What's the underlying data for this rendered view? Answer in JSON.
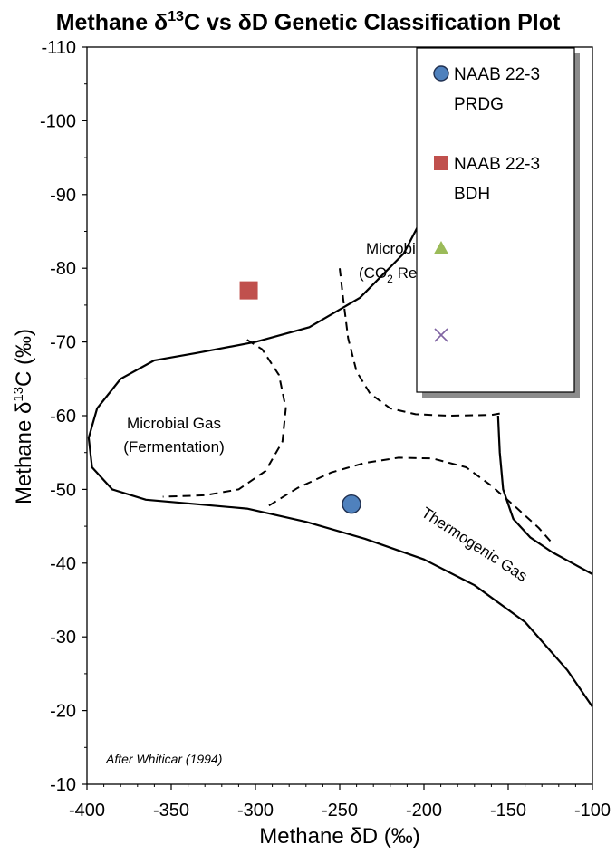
{
  "chart_data": {
    "type": "scatter",
    "title": "Methane δ13C vs δD Genetic Classification Plot",
    "title_parts": {
      "a": "Methane δ",
      "sup": "13",
      "b": "C vs δD Genetic Classification Plot"
    },
    "xlabel": "Methane δD (‰)",
    "ylabel": "Methane δ13C (‰)",
    "ylabel_parts": {
      "a": "Methane  δ",
      "sup": "13",
      "b": "C (‰)"
    },
    "xlim": [
      -400,
      -100
    ],
    "ylim": [
      -110,
      -10
    ],
    "y_axis_reversed": true,
    "x_ticks": [
      -400,
      -350,
      -300,
      -250,
      -200,
      -150,
      -100
    ],
    "x_tick_labels": [
      "-400",
      "-350",
      "-300",
      "-250",
      "-200",
      "-150",
      "-100"
    ],
    "y_ticks": [
      -110,
      -100,
      -90,
      -80,
      -70,
      -60,
      -50,
      -40,
      -30,
      -20,
      -10
    ],
    "y_tick_labels": [
      "-110",
      "-100",
      "-90",
      "-80",
      "-70",
      "-60",
      "-50",
      "-40",
      "-30",
      "-20",
      "-10"
    ],
    "grid": false,
    "legend_position": "top-right",
    "series": [
      {
        "name": "NAAB 22-3 PRDG",
        "legend_lines": [
          "NAAB 22-3",
          "PRDG"
        ],
        "marker": "circle",
        "color": "#4f81bd",
        "points": [
          {
            "x": -243,
            "y": -48
          }
        ]
      },
      {
        "name": "NAAB 22-3 BDH",
        "legend_lines": [
          "NAAB 22-3",
          "BDH"
        ],
        "marker": "square",
        "color": "#c0504d",
        "points": [
          {
            "x": -304,
            "y": -77
          }
        ]
      },
      {
        "name": "",
        "legend_lines": [],
        "marker": "triangle",
        "color": "#9bbb59",
        "points": []
      },
      {
        "name": "",
        "legend_lines": [],
        "marker": "x",
        "color": "#8064a2",
        "points": []
      }
    ],
    "annotations": {
      "fermentation": [
        "Microbial Gas",
        "(Fermentation)"
      ],
      "co2_reduction_line1": "Microbial Gas",
      "co2_reduction_line2": {
        "a": "(CO",
        "sub": "2",
        "b": " Reduction)"
      },
      "thermogenic": "Thermogenic Gas",
      "credit": "After Whiticar (1994)"
    },
    "boundaries": [
      {
        "style": "solid",
        "points": [
          [
            -183,
            -110
          ],
          [
            -184,
            -103
          ],
          [
            -188,
            -96
          ],
          [
            -196,
            -89
          ],
          [
            -212,
            -82
          ],
          [
            -238,
            -76
          ],
          [
            -268,
            -72
          ],
          [
            -300,
            -70
          ],
          [
            -335,
            -68.5
          ],
          [
            -360,
            -67.5
          ],
          [
            -380,
            -65
          ],
          [
            -394,
            -61
          ],
          [
            -399,
            -57
          ],
          [
            -397,
            -53
          ],
          [
            -385,
            -50
          ],
          [
            -365,
            -48.6
          ],
          [
            -335,
            -48
          ],
          [
            -305,
            -47.4
          ],
          [
            -270,
            -45.6
          ],
          [
            -235,
            -43.3
          ],
          [
            -200,
            -40.5
          ],
          [
            -170,
            -37
          ],
          [
            -140,
            -32
          ],
          [
            -115,
            -25.5
          ],
          [
            -100,
            -20.5
          ]
        ]
      },
      {
        "style": "solid",
        "points": [
          [
            -156,
            -60
          ],
          [
            -155,
            -55
          ],
          [
            -153,
            -50
          ],
          [
            -147,
            -46
          ],
          [
            -137,
            -43.5
          ],
          [
            -124,
            -41.5
          ],
          [
            -112,
            -40
          ],
          [
            -100,
            -38.5
          ]
        ]
      },
      {
        "style": "dashed",
        "points": [
          [
            -305,
            -70.3
          ],
          [
            -296,
            -69
          ],
          [
            -286,
            -65.5
          ],
          [
            -282,
            -61
          ],
          [
            -284,
            -56.5
          ],
          [
            -294,
            -52.5
          ],
          [
            -310,
            -50
          ],
          [
            -330,
            -49.2
          ],
          [
            -355,
            -49
          ]
        ]
      },
      {
        "style": "dashed",
        "points": [
          [
            -250,
            -80
          ],
          [
            -248,
            -76
          ],
          [
            -245,
            -70.5
          ],
          [
            -240,
            -66
          ],
          [
            -232,
            -63
          ],
          [
            -220,
            -61
          ],
          [
            -205,
            -60.2
          ],
          [
            -185,
            -60
          ],
          [
            -160,
            -60.1
          ],
          [
            -155,
            -60.3
          ]
        ]
      },
      {
        "style": "dashed",
        "points": [
          [
            -292,
            -47.8
          ],
          [
            -275,
            -50.2
          ],
          [
            -255,
            -52.3
          ],
          [
            -235,
            -53.6
          ],
          [
            -215,
            -54.3
          ],
          [
            -195,
            -54.2
          ],
          [
            -175,
            -53
          ],
          [
            -160,
            -50.5
          ],
          [
            -145,
            -47.5
          ],
          [
            -132,
            -44.8
          ],
          [
            -125,
            -43
          ]
        ]
      }
    ],
    "legend_item_positions": null
  }
}
